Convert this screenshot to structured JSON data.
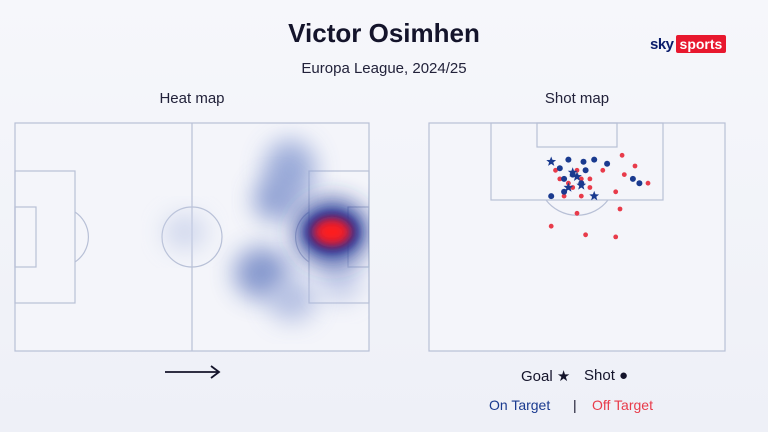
{
  "title": "Victor Osimhen",
  "subtitle": "Europa League, 2024/25",
  "logo": {
    "sky": "sky",
    "sports": "sports"
  },
  "panels": {
    "heat": "Heat map",
    "shot": "Shot map"
  },
  "legend": {
    "goal_label": "Goal",
    "goal_symbol": "★",
    "shot_label": "Shot",
    "shot_symbol": "●",
    "on_target": "On Target",
    "separator": "|",
    "off_target": "Off Target"
  },
  "colors": {
    "on_target": "#1a3a8f",
    "off_target": "#e83b4a",
    "pitch_line": "#b8c0d6",
    "brand": "#e8182e"
  },
  "icons": {
    "direction": "right-arrow-icon"
  },
  "chart_data": [
    {
      "type": "heatmap",
      "title": "Heat map",
      "attack_direction": "right",
      "hotspots": [
        {
          "zone": "opponent box, central",
          "intensity": 1.0
        },
        {
          "zone": "right half-space, attacking third",
          "intensity": 0.35
        },
        {
          "zone": "left half-space, attacking third",
          "intensity": 0.3
        },
        {
          "zone": "centre circle area",
          "intensity": 0.2
        }
      ]
    },
    {
      "type": "scatter",
      "title": "Shot map",
      "series": [
        {
          "name": "On Target",
          "marker": "shot",
          "points": [
            [
              -2,
              8.5
            ],
            [
              1.5,
              9
            ],
            [
              4,
              8.5
            ],
            [
              -4,
              10.5
            ],
            [
              -1,
              12
            ],
            [
              2,
              11
            ],
            [
              -3,
              13
            ],
            [
              1,
              14
            ],
            [
              -6,
              17
            ],
            [
              -3,
              16
            ],
            [
              7,
              9.5
            ],
            [
              13,
              13
            ],
            [
              14.5,
              14
            ]
          ]
        },
        {
          "name": "On Target",
          "marker": "goal",
          "points": [
            [
              -6,
              9
            ],
            [
              -1,
              11.5
            ],
            [
              0,
              12.5
            ],
            [
              -2,
              15
            ],
            [
              1,
              14.5
            ],
            [
              4,
              17
            ]
          ]
        },
        {
          "name": "Off Target",
          "marker": "shot",
          "points": [
            [
              -5,
              11
            ],
            [
              -4,
              13
            ],
            [
              -2,
              14
            ],
            [
              0,
              11
            ],
            [
              1,
              13
            ],
            [
              3,
              13
            ],
            [
              3,
              15
            ],
            [
              -3,
              17
            ],
            [
              -1,
              15
            ],
            [
              1,
              17
            ],
            [
              6,
              11
            ],
            [
              9,
              16
            ],
            [
              10.5,
              7.5
            ],
            [
              11,
              12
            ],
            [
              13.5,
              10
            ],
            [
              16.5,
              14
            ],
            [
              10,
              20
            ],
            [
              0,
              21
            ],
            [
              -6,
              24
            ],
            [
              2,
              26
            ],
            [
              9,
              26.5
            ]
          ]
        }
      ]
    }
  ]
}
